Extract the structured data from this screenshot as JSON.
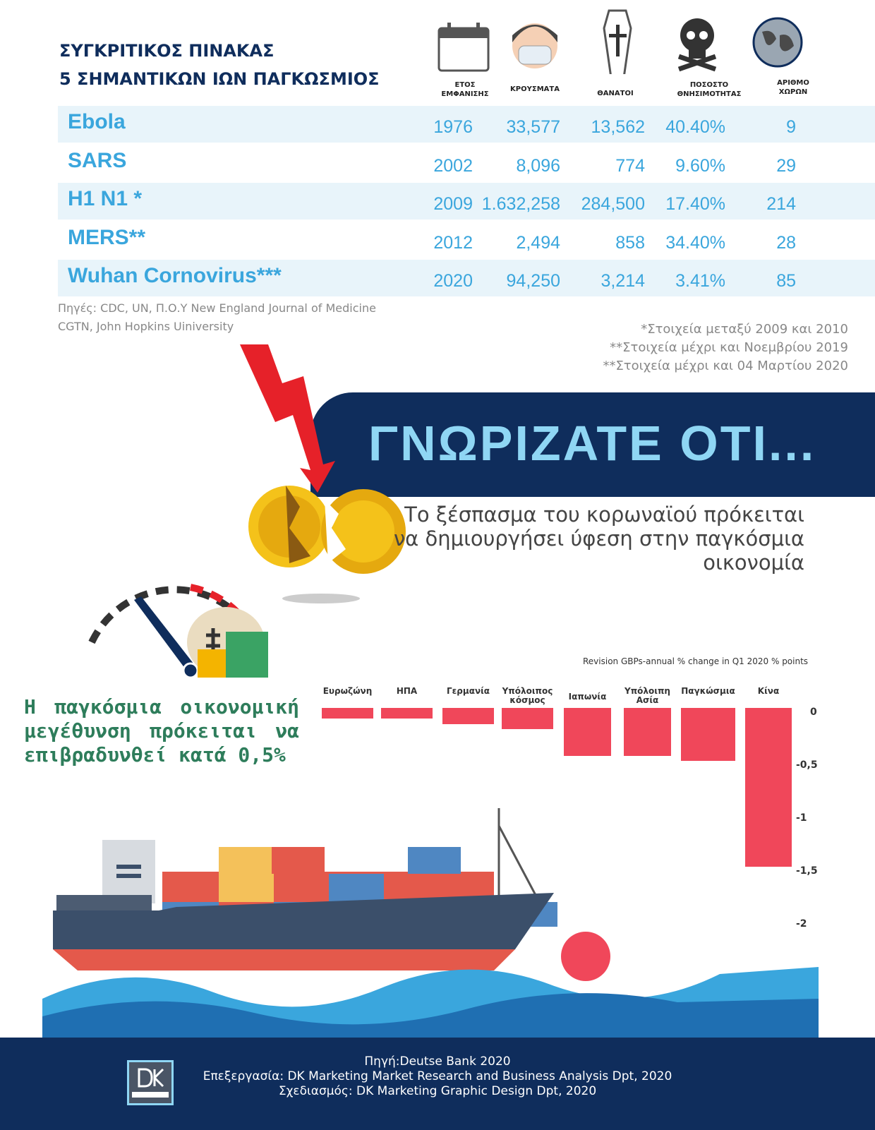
{
  "table": {
    "title_line1": "ΣΥΓΚΡΙΤΙΚΟΣ ΠΙΝΑΚΑΣ",
    "title_line2": "5 ΣΗΜΑΝΤΙΚΩΝ ΙΩΝ ΠΑΓΚΩΣΜΙΟΣ",
    "headers": [
      {
        "l1": "ΕΤΟΣ",
        "l2": "ΕΜΦΑΝΙΣΗΣ",
        "icon": "calendar-icon"
      },
      {
        "l1": "ΚΡΟΥΣΜΑΤΑ",
        "l2": "",
        "icon": "face-mask-icon"
      },
      {
        "l1": "ΘΑΝΑΤΟΙ",
        "l2": "",
        "icon": "coffin-icon"
      },
      {
        "l1": "ΠΟΣΟΣΤΟ",
        "l2": "ΘΝΗΣΙΜΟΤΗΤΑΣ",
        "icon": "skull-icon"
      },
      {
        "l1": "ΑΡΙΘΜΟ",
        "l2": "ΧΩΡΩΝ",
        "icon": "globe-icon"
      }
    ],
    "rows": [
      {
        "name": "Ebola",
        "year": "1976",
        "cases": "33,577",
        "deaths": "13,562",
        "rate": "40.40%",
        "countries": "9"
      },
      {
        "name": "SARS",
        "year": "2002",
        "cases": "8,096",
        "deaths": "774",
        "rate": "9.60%",
        "countries": "29"
      },
      {
        "name": "H1 N1 *",
        "year": "2009",
        "cases": "1.632,258",
        "deaths": "284,500",
        "rate": "17.40%",
        "countries": "214"
      },
      {
        "name": "MERS**",
        "year": "2012",
        "cases": "2,494",
        "deaths": "858",
        "rate": "34.40%",
        "countries": "28"
      },
      {
        "name": "Wuhan Cornovirus***",
        "year": "2020",
        "cases": "94,250",
        "deaths": "3,214",
        "rate": "3.41%",
        "countries": "85"
      }
    ],
    "sources_line1": "Πηγές: CDC, UN, Π.Ο.Υ New England Journal of Medicine",
    "sources_line2": "CGTN, John Hopkins Uiniversity",
    "notes": [
      "*Στοιχεία μεταξύ 2009 και 2010",
      "**Στοιχεία μέχρι και Νοεμβρίου 2019",
      "**Στοιχεία μέχρι και 04 Μαρτίου 2020"
    ]
  },
  "banner": {
    "title": "ΓΝΩΡΙΖΑΤΕ ΟΤΙ...",
    "text": "Το ξέσπασμα του κορωναϊού πρόκειται να δημιουργήσει ύφεση στην παγκόσμια οικονομία"
  },
  "growth_text": "Η παγκόσμια οικονομική μεγέθυνση πρόκειται να επιβραδυνθεί κατά 0,5%",
  "chart_data": {
    "type": "bar",
    "title": "Revision GBPs-annual % change in Q1 2020 % points",
    "categories": [
      "Ευρωζώνη",
      "ΗΠΑ",
      "Γερμανία",
      "Υπόλοιπος κόσμος",
      "Ιαπωνία",
      "Υπόλοιπη Ασία",
      "Παγκώσμια",
      "Κίνα"
    ],
    "values": [
      -0.1,
      -0.1,
      -0.15,
      -0.2,
      -0.45,
      -0.45,
      -0.5,
      -1.5
    ],
    "ylim": [
      -2,
      0
    ],
    "yticks": [
      "0",
      "-0,5",
      "-1",
      "-1,5",
      "-2"
    ],
    "yticks_values": [
      0,
      -0.5,
      -1,
      -1.5,
      -2
    ],
    "bar_color": "#f0475a",
    "legend": "none"
  },
  "footer": {
    "line1": "Πηγή:Deutse Bank 2020",
    "line2": "Επεξεργασία: DK Marketing Market Research and Business Analysis Dpt, 2020",
    "line3": "Σχεδιασμός: DK Marketing Graphic Design Dpt, 2020",
    "logo": "DK MARKETING"
  }
}
